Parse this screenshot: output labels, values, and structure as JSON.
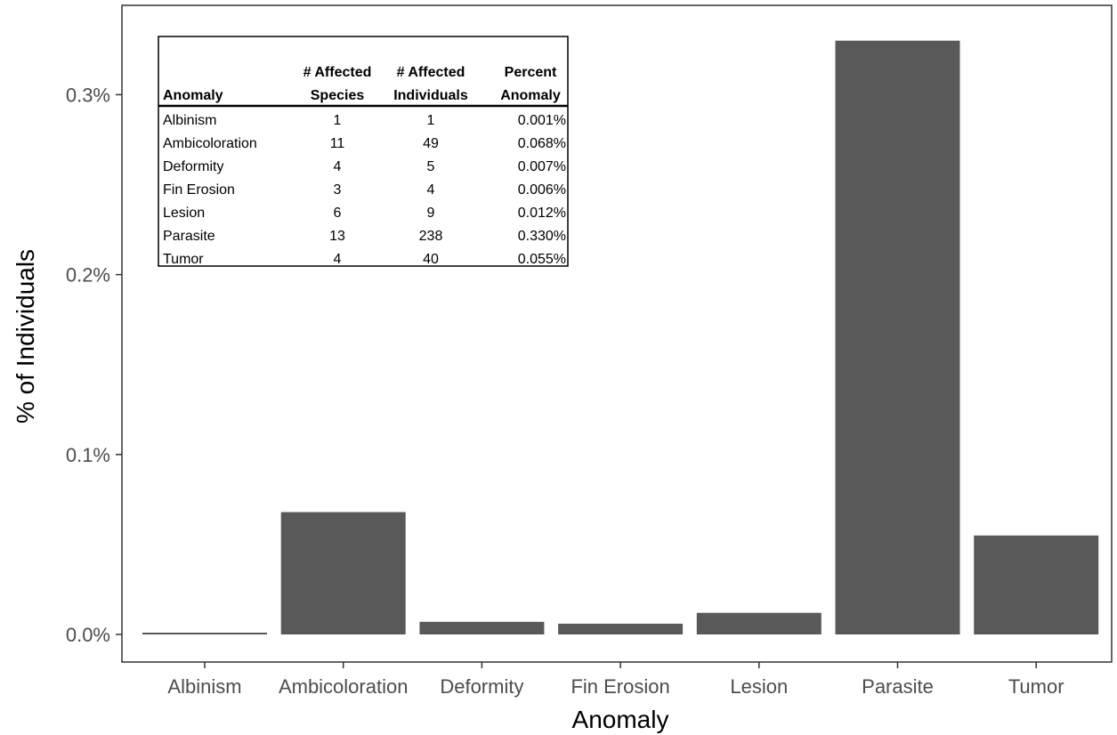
{
  "colors": {
    "bar": "#595959",
    "axis": "#333333",
    "panel_border": "#333333",
    "tick_text": "#4d4d4d"
  },
  "chart_data": {
    "type": "bar",
    "title": "",
    "xlabel": "Anomaly",
    "ylabel": "% of Individuals",
    "categories": [
      "Albinism",
      "Ambicoloration",
      "Deformity",
      "Fin Erosion",
      "Lesion",
      "Parasite",
      "Tumor"
    ],
    "values": [
      0.001,
      0.068,
      0.007,
      0.006,
      0.012,
      0.33,
      0.055
    ],
    "y_unit": "%",
    "ylim": [
      0,
      0.33
    ],
    "yticks": [
      0.0,
      0.1,
      0.2,
      0.3
    ],
    "ytick_labels": [
      "0.0%",
      "0.1%",
      "0.2%",
      "0.3%"
    ],
    "grid": false
  },
  "inset_table": {
    "headers": [
      [
        "",
        "Anomaly"
      ],
      [
        "# Affected",
        "Species"
      ],
      [
        "# Affected",
        "Individuals"
      ],
      [
        "Percent",
        "Anomaly"
      ]
    ],
    "rows": [
      [
        "Albinism",
        "1",
        "1",
        "0.001%"
      ],
      [
        "Ambicoloration",
        "11",
        "49",
        "0.068%"
      ],
      [
        "Deformity",
        "4",
        "5",
        "0.007%"
      ],
      [
        "Fin Erosion",
        "3",
        "4",
        "0.006%"
      ],
      [
        "Lesion",
        "6",
        "9",
        "0.012%"
      ],
      [
        "Parasite",
        "13",
        "238",
        "0.330%"
      ],
      [
        "Tumor",
        "4",
        "40",
        "0.055%"
      ]
    ]
  }
}
